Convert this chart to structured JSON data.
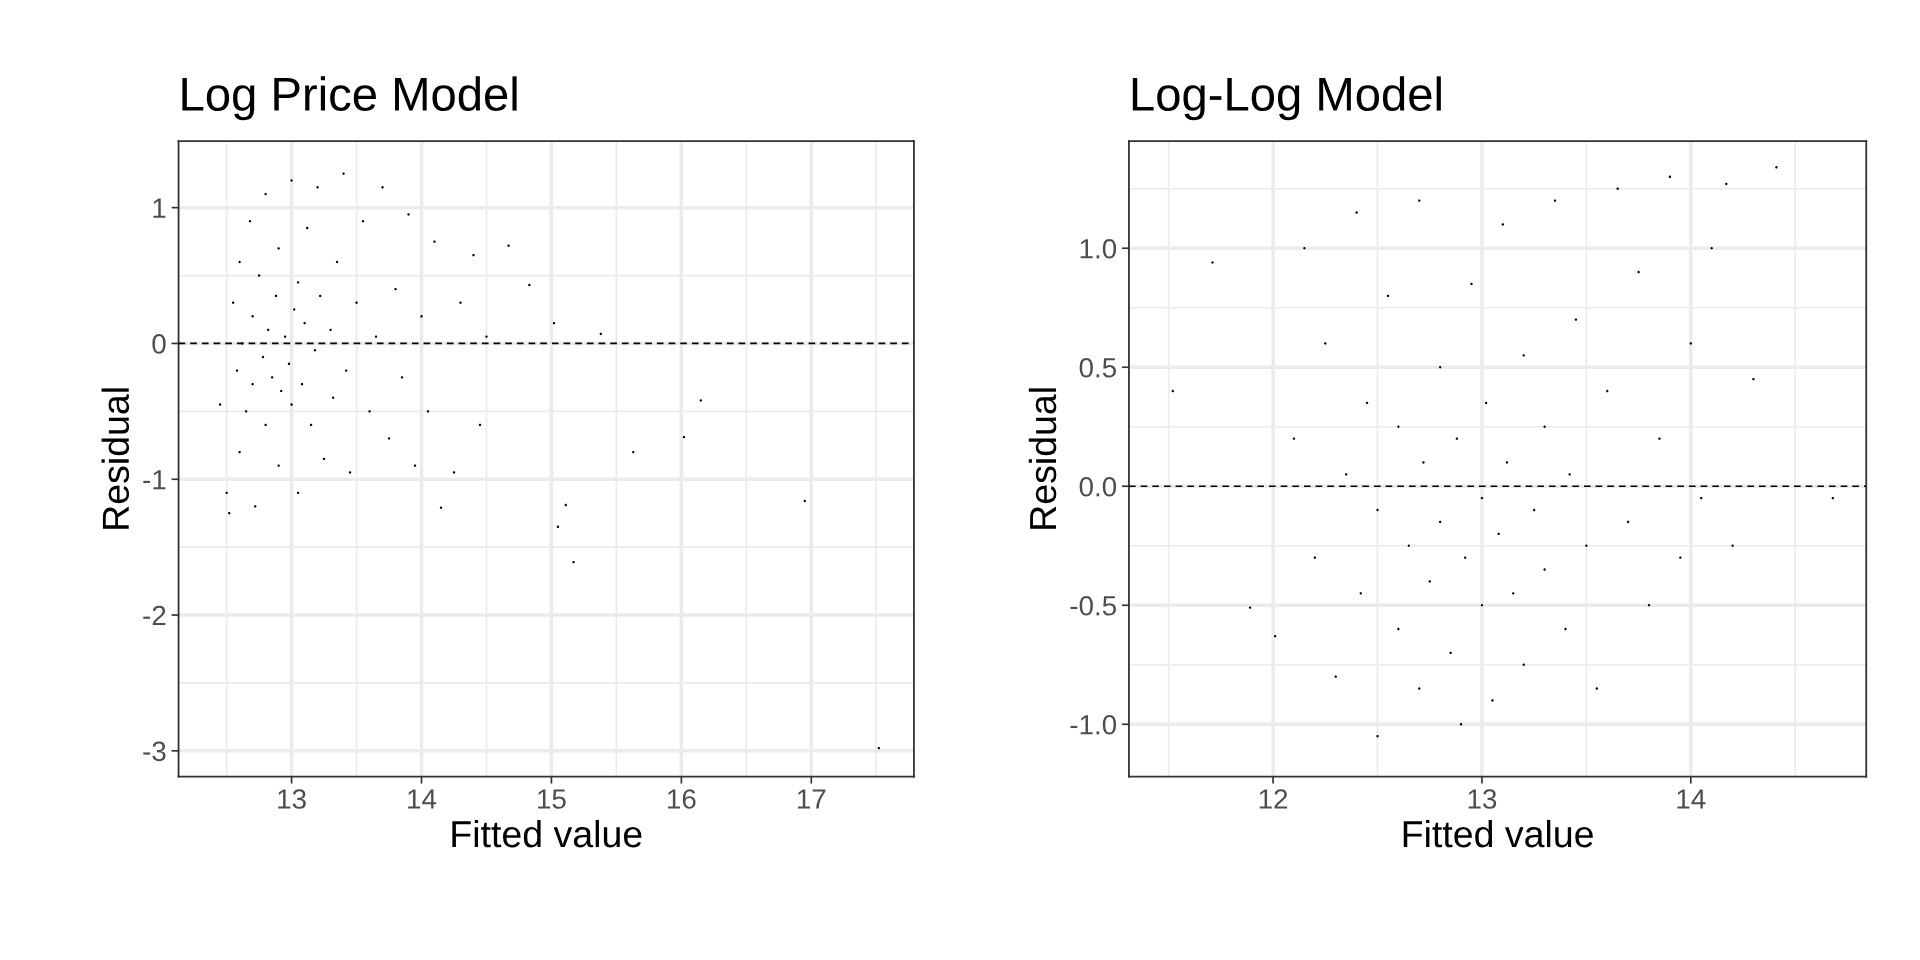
{
  "chart_data": [
    {
      "type": "scatter",
      "title": "Log Price Model",
      "xlabel": "Fitted value",
      "ylabel": "Residual",
      "xlim": [
        12.13,
        17.79
      ],
      "ylim": [
        -3.19,
        1.49
      ],
      "xticks": [
        13,
        14,
        15,
        16,
        17
      ],
      "yticks": [
        -3,
        -2,
        -1,
        0,
        1
      ],
      "grid": true,
      "ref_lines": [
        {
          "axis": "y",
          "value": 0,
          "color": "#000000",
          "line_style": "dashed"
        }
      ],
      "series": [
        {
          "color": "#000000",
          "x": [
            12.45,
            12.5,
            12.52,
            12.55,
            12.58,
            12.6,
            12.6,
            12.62,
            12.65,
            12.68,
            12.7,
            12.7,
            12.72,
            12.75,
            12.78,
            12.8,
            12.8,
            12.82,
            12.85,
            12.88,
            12.9,
            12.9,
            12.92,
            12.95,
            12.98,
            13.0,
            13.0,
            13.02,
            13.05,
            13.05,
            13.08,
            13.1,
            13.12,
            13.15,
            13.18,
            13.2,
            13.22,
            13.25,
            13.3,
            13.32,
            13.35,
            13.4,
            13.42,
            13.45,
            13.5,
            13.55,
            13.6,
            13.65,
            13.7,
            13.75,
            13.8,
            13.85,
            13.9,
            13.95,
            14.0,
            14.05,
            14.1,
            14.15,
            14.25,
            14.3,
            14.4,
            14.45,
            14.5,
            14.67,
            14.83,
            15.02,
            15.05,
            15.11,
            15.17,
            15.38,
            15.63,
            16.02,
            16.15,
            16.95,
            17.52
          ],
          "values": [
            -0.45,
            -1.1,
            -1.25,
            0.3,
            -0.2,
            -0.8,
            0.6,
            0.0,
            -0.5,
            0.9,
            0.2,
            -0.3,
            -1.2,
            0.5,
            -0.1,
            1.1,
            -0.6,
            0.1,
            -0.25,
            0.35,
            -0.9,
            0.7,
            -0.35,
            0.05,
            -0.15,
            1.2,
            -0.45,
            0.25,
            -1.1,
            0.45,
            -0.3,
            0.15,
            0.85,
            -0.6,
            -0.05,
            1.15,
            0.35,
            -0.85,
            0.1,
            -0.4,
            0.6,
            1.25,
            -0.2,
            -0.95,
            0.3,
            0.9,
            -0.5,
            0.05,
            1.15,
            -0.7,
            0.4,
            -0.25,
            0.95,
            -0.9,
            0.2,
            -0.5,
            0.75,
            -1.21,
            -0.95,
            0.3,
            0.65,
            -0.6,
            0.05,
            0.72,
            0.43,
            0.15,
            -1.35,
            -1.19,
            -1.61,
            0.07,
            -0.8,
            -0.69,
            -0.42,
            -1.16,
            -2.98
          ]
        }
      ]
    },
    {
      "type": "scatter",
      "title": "Log-Log Model",
      "xlabel": "Fitted value",
      "ylabel": "Residual",
      "xlim": [
        11.31,
        14.84
      ],
      "ylim": [
        -1.22,
        1.45
      ],
      "xticks": [
        12,
        13,
        14
      ],
      "yticks": [
        {
          "value": -1,
          "label": "-1.0"
        },
        {
          "value": -0.5,
          "label": "-0.5"
        },
        {
          "value": 0,
          "label": "0.0"
        },
        {
          "value": 0.5,
          "label": "0.5"
        },
        {
          "value": 1,
          "label": "1.0"
        }
      ],
      "grid": true,
      "ref_lines": [
        {
          "axis": "y",
          "value": 0,
          "color": "#000000",
          "line_style": "dashed"
        }
      ],
      "series": [
        {
          "color": "#000000",
          "x": [
            11.52,
            11.71,
            11.89,
            12.01,
            12.1,
            12.15,
            12.2,
            12.25,
            12.3,
            12.35,
            12.4,
            12.42,
            12.45,
            12.5,
            12.5,
            12.55,
            12.6,
            12.6,
            12.65,
            12.7,
            12.7,
            12.72,
            12.75,
            12.8,
            12.8,
            12.85,
            12.88,
            12.9,
            12.92,
            12.95,
            13.0,
            13.0,
            13.02,
            13.05,
            13.08,
            13.1,
            13.12,
            13.15,
            13.2,
            13.2,
            13.25,
            13.3,
            13.3,
            13.35,
            13.4,
            13.42,
            13.45,
            13.5,
            13.55,
            13.6,
            13.65,
            13.7,
            13.75,
            13.8,
            13.85,
            13.9,
            13.95,
            14.0,
            14.05,
            14.1,
            14.17,
            14.2,
            14.3,
            14.41,
            14.68
          ],
          "values": [
            0.4,
            0.94,
            -0.51,
            -0.63,
            0.2,
            1.0,
            -0.3,
            0.6,
            -0.8,
            0.05,
            1.15,
            -0.45,
            0.35,
            -1.05,
            -0.1,
            0.8,
            -0.6,
            0.25,
            -0.25,
            1.2,
            -0.85,
            0.1,
            -0.4,
            0.5,
            -0.15,
            -0.7,
            0.2,
            -1.0,
            -0.3,
            0.85,
            -0.05,
            -0.5,
            0.35,
            -0.9,
            -0.2,
            1.1,
            0.1,
            -0.45,
            0.55,
            -0.75,
            -0.1,
            0.25,
            -0.35,
            1.2,
            -0.6,
            0.05,
            0.7,
            -0.25,
            -0.85,
            0.4,
            1.25,
            -0.15,
            0.9,
            -0.5,
            0.2,
            1.3,
            -0.3,
            0.6,
            -0.05,
            1.0,
            1.27,
            -0.25,
            0.45,
            1.34,
            -0.05
          ]
        }
      ]
    }
  ]
}
